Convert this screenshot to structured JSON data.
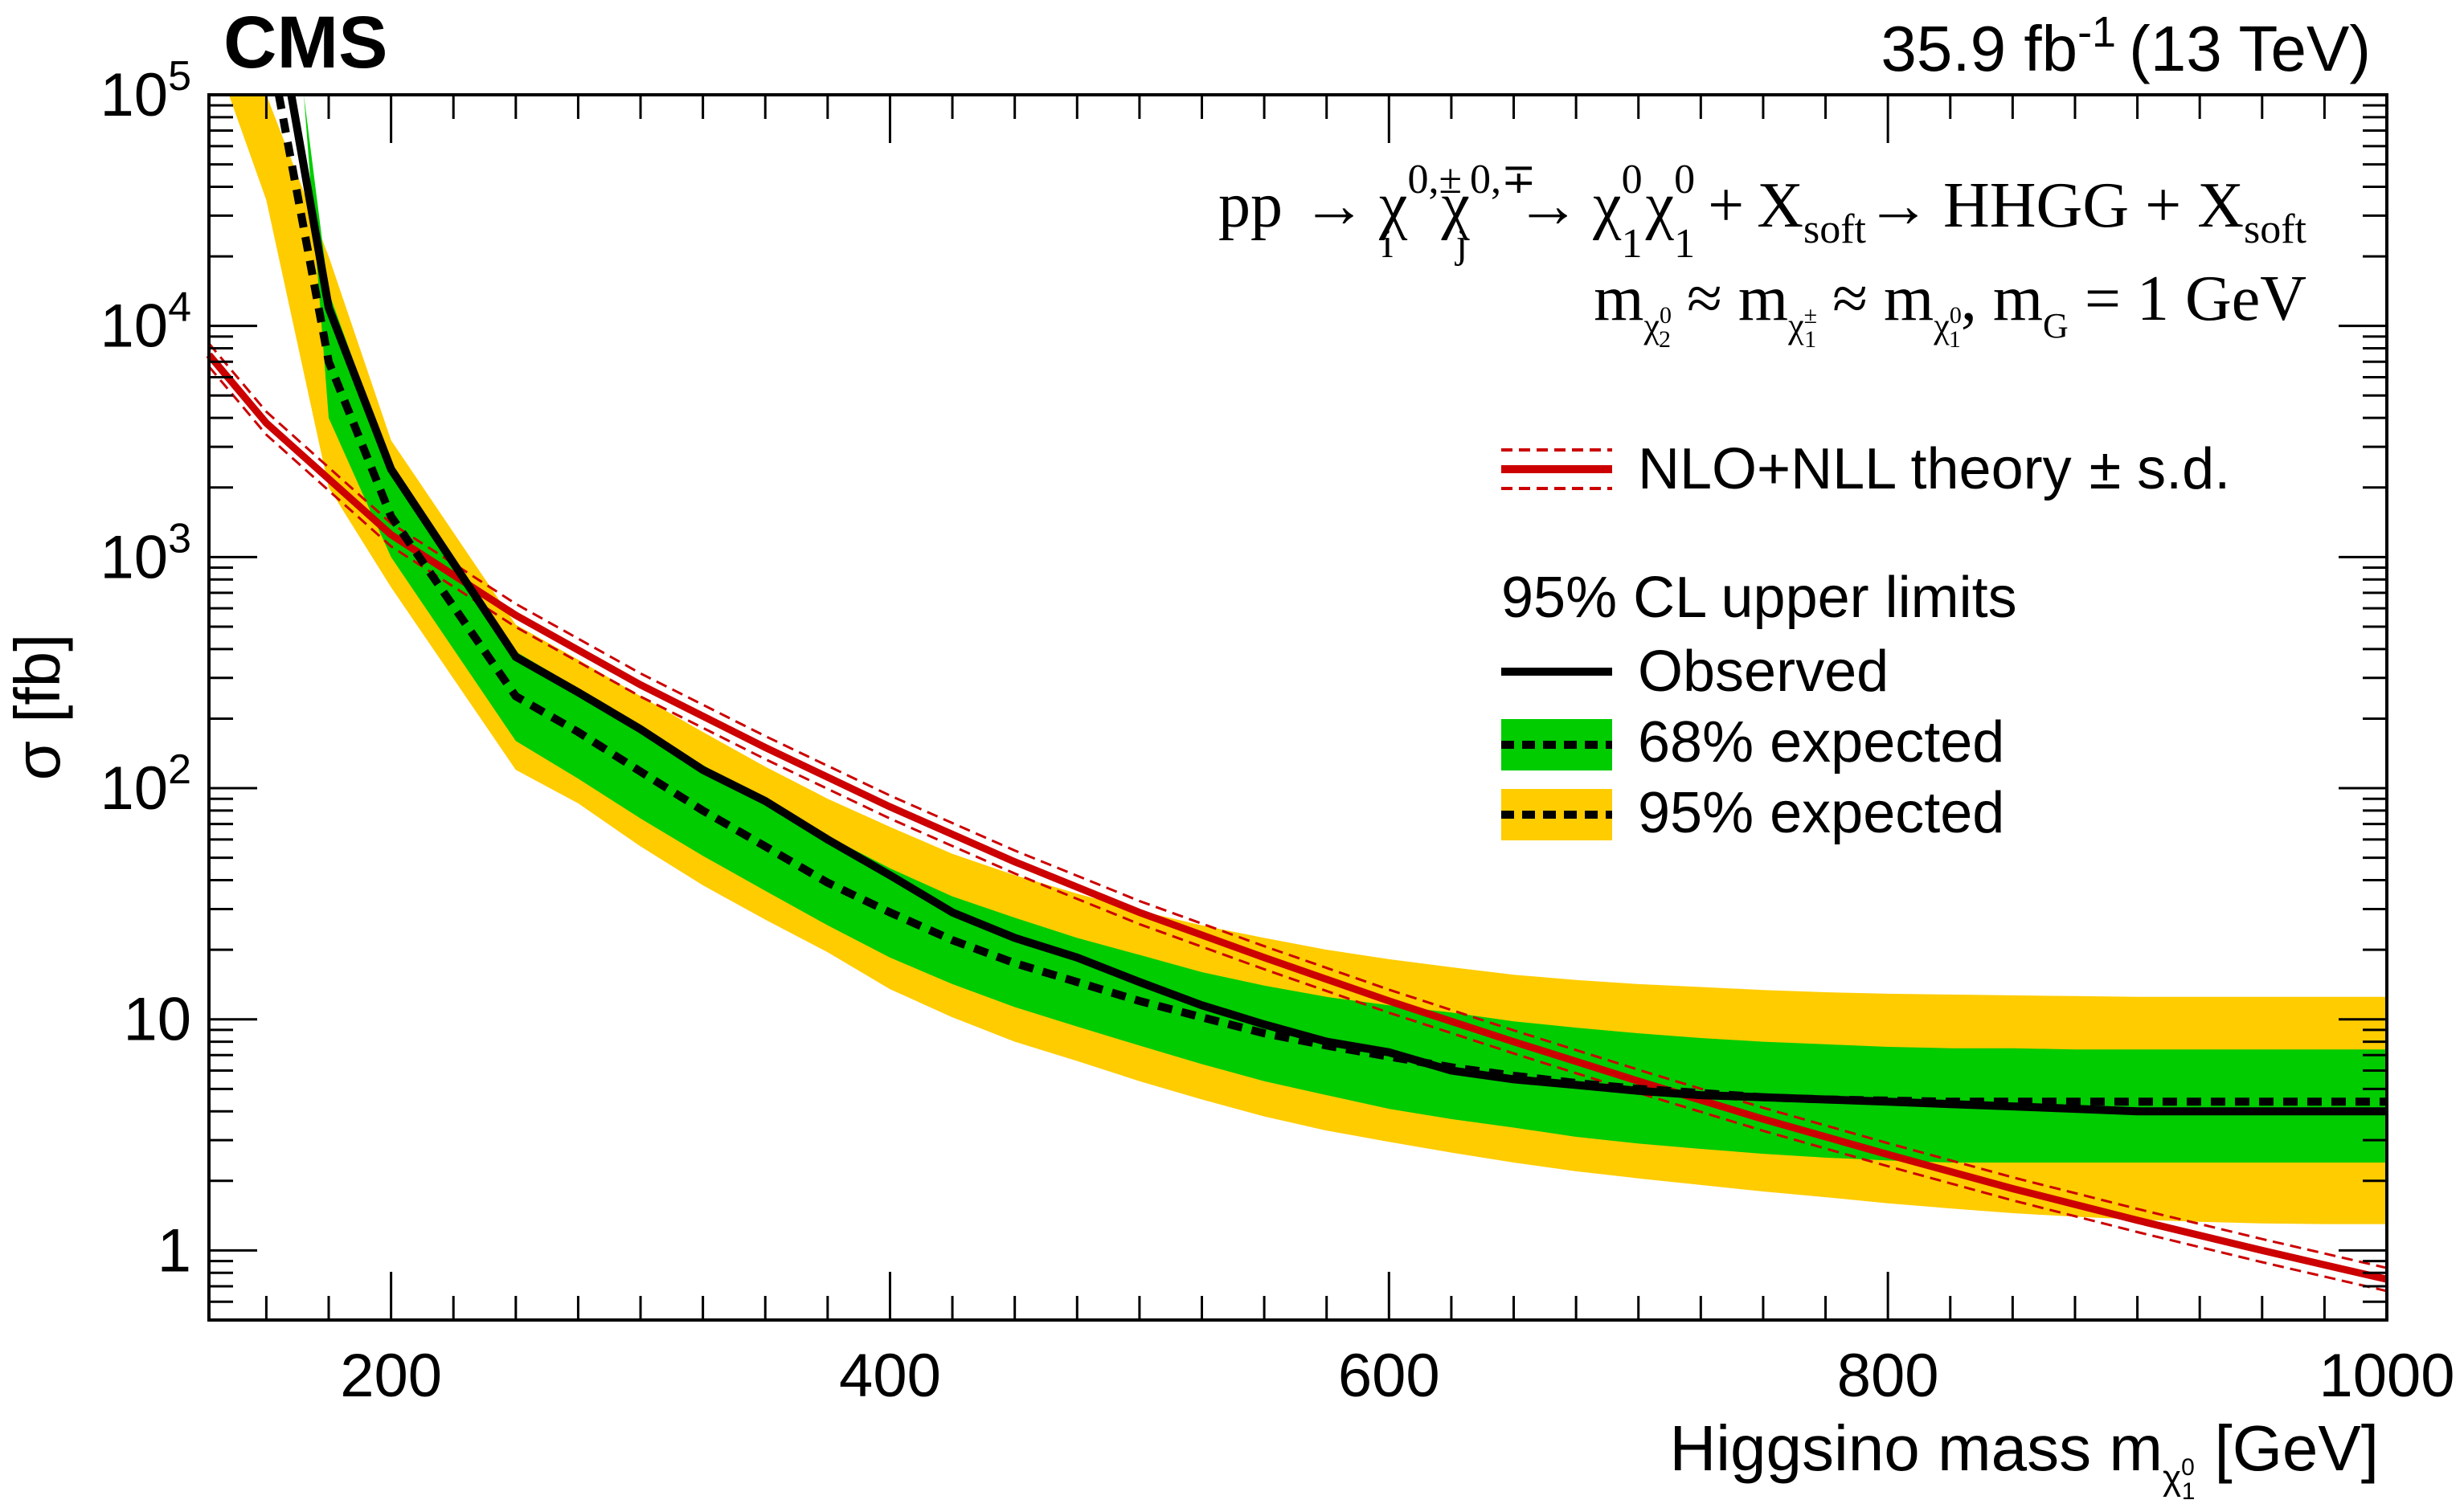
{
  "header": {
    "experiment": "CMS",
    "lumi_value": "35.9 fb",
    "lumi_exp": "-1",
    "energy": "(13 TeV)"
  },
  "process": {
    "pp": "pp",
    "chi": "χ",
    "tilde": "~",
    "arrow": "→",
    "sup_pm": "0,±",
    "sup_mp": "0,∓",
    "sub_i": "i",
    "sub_j": "j",
    "sub_1": "1",
    "sup_0": "0",
    "plus": "+",
    "X": "X",
    "soft": "soft",
    "HHGG": "HHGG",
    "G": "G"
  },
  "mass_condition": {
    "m": "m",
    "approx": "≈",
    "sub_2": "2",
    "sub_1": "1",
    "sup_0": "0",
    "sup_pm": "±",
    "comma": ",",
    "equals_value": "= 1 GeV"
  },
  "legend": {
    "theory": "NLO+NLL theory",
    "theory_unc": "± s.d.",
    "header": "95% CL upper limits",
    "observed": "Observed",
    "exp68": "68% expected",
    "exp95": "95% expected"
  },
  "axes": {
    "xlabel_main": "Higgsino mass m",
    "xlabel_unit": "[GeV]",
    "ylabel": "σ [fb]"
  },
  "chart_data": {
    "type": "line",
    "x_range": [
      127,
      1000
    ],
    "y_range": [
      0.5,
      100000
    ],
    "y_scale": "log",
    "x_ticks": [
      200,
      400,
      600,
      800,
      1000
    ],
    "y_ticks": [
      {
        "value": 1,
        "mant": "1",
        "exp": ""
      },
      {
        "value": 10,
        "mant": "10",
        "exp": ""
      },
      {
        "value": 100,
        "mant": "10",
        "exp": "2"
      },
      {
        "value": 1000,
        "mant": "10",
        "exp": "3"
      },
      {
        "value": 10000,
        "mant": "10",
        "exp": "4"
      },
      {
        "value": 100000,
        "mant": "10",
        "exp": "5"
      }
    ],
    "colors": {
      "band95": "#ffcc00",
      "band68": "#00cc00",
      "theory": "#cc0000",
      "observed": "#000000",
      "expected": "#000000"
    },
    "series": [
      {
        "name": "NLO+NLL theory",
        "x": [
          127,
          150,
          200,
          250,
          300,
          350,
          400,
          450,
          500,
          550,
          600,
          650,
          700,
          750,
          800,
          850,
          900,
          950,
          1000
        ],
        "values": [
          7500,
          3800,
          1250,
          560,
          280,
          150,
          83,
          48,
          29,
          18.5,
          12,
          8,
          5.4,
          3.7,
          2.6,
          1.85,
          1.35,
          1.0,
          0.75
        ]
      },
      {
        "name": "Observed",
        "x": [
          160,
          175,
          200,
          250,
          275,
          300,
          325,
          350,
          375,
          400,
          425,
          450,
          475,
          500,
          525,
          550,
          575,
          600,
          625,
          650,
          675,
          700,
          725,
          750,
          775,
          800,
          825,
          850,
          875,
          900,
          925,
          950,
          975,
          1000
        ],
        "values": [
          100000,
          12000,
          2400,
          370,
          260,
          180,
          120,
          88,
          60,
          42,
          29,
          22.5,
          18.5,
          14.5,
          11.5,
          9.5,
          8,
          7.2,
          6.0,
          5.5,
          5.2,
          4.9,
          4.7,
          4.6,
          4.5,
          4.4,
          4.3,
          4.2,
          4.1,
          4.0,
          4.0,
          4.0,
          4.0,
          4.0
        ]
      },
      {
        "name": "Expected",
        "x": [
          155,
          175,
          200,
          250,
          275,
          300,
          325,
          350,
          375,
          400,
          425,
          450,
          475,
          500,
          525,
          550,
          575,
          600,
          625,
          650,
          675,
          700,
          725,
          750,
          775,
          800,
          825,
          850,
          875,
          900,
          925,
          950,
          975,
          1000
        ],
        "values": [
          100000,
          7000,
          1500,
          250,
          175,
          118,
          80,
          56,
          39,
          29,
          22,
          17.5,
          14.5,
          12,
          10.2,
          8.7,
          7.7,
          6.9,
          6.2,
          5.7,
          5.3,
          5.0,
          4.8,
          4.6,
          4.5,
          4.45,
          4.4,
          4.4,
          4.4,
          4.4,
          4.4,
          4.4,
          4.4,
          4.4
        ]
      },
      {
        "name": "68% expected",
        "x": [
          165,
          175,
          200,
          250,
          275,
          300,
          325,
          350,
          375,
          400,
          425,
          450,
          475,
          500,
          525,
          550,
          575,
          600,
          625,
          650,
          675,
          700,
          725,
          750,
          775,
          800,
          825,
          850,
          875,
          900,
          925,
          950,
          975,
          1000
        ],
        "upper": [
          100000,
          14000,
          2500,
          390,
          270,
          185,
          126,
          88,
          62,
          45,
          34,
          27.5,
          22.5,
          19,
          16,
          14,
          12.5,
          11.5,
          10.7,
          9.8,
          9.2,
          8.7,
          8.3,
          8.0,
          7.8,
          7.6,
          7.5,
          7.5,
          7.4,
          7.4,
          7.4,
          7.4,
          7.4,
          7.4
        ],
        "lower": [
          100000,
          4000,
          1000,
          160,
          110,
          74,
          51,
          36,
          25.5,
          18.5,
          14.2,
          11.3,
          9.3,
          7.7,
          6.4,
          5.4,
          4.7,
          4.1,
          3.7,
          3.4,
          3.1,
          2.9,
          2.75,
          2.62,
          2.52,
          2.45,
          2.4,
          2.4,
          2.4,
          2.4,
          2.4,
          2.4,
          2.4,
          2.4
        ]
      },
      {
        "name": "95% expected",
        "x": [
          135,
          150,
          175,
          200,
          250,
          275,
          300,
          325,
          350,
          375,
          400,
          425,
          450,
          475,
          500,
          525,
          550,
          575,
          600,
          625,
          650,
          675,
          700,
          725,
          750,
          775,
          800,
          825,
          850,
          875,
          900,
          925,
          950,
          975,
          1000
        ],
        "upper": [
          100000,
          100000,
          20000,
          3200,
          510,
          360,
          250,
          175,
          124,
          90,
          68,
          52,
          42,
          35,
          29.5,
          25.5,
          22.5,
          20,
          18.2,
          16.8,
          15.6,
          14.8,
          14.2,
          13.8,
          13.4,
          13.1,
          12.9,
          12.8,
          12.7,
          12.6,
          12.5,
          12.5,
          12.5,
          12.5,
          12.5
        ],
        "lower": [
          100000,
          35000,
          2000,
          740,
          120,
          86,
          56,
          38,
          27,
          19.5,
          13.5,
          10.2,
          8.0,
          6.6,
          5.4,
          4.5,
          3.8,
          3.3,
          2.95,
          2.65,
          2.4,
          2.2,
          2.05,
          1.92,
          1.8,
          1.7,
          1.6,
          1.52,
          1.45,
          1.4,
          1.36,
          1.33,
          1.31,
          1.3,
          1.3
        ]
      }
    ]
  }
}
